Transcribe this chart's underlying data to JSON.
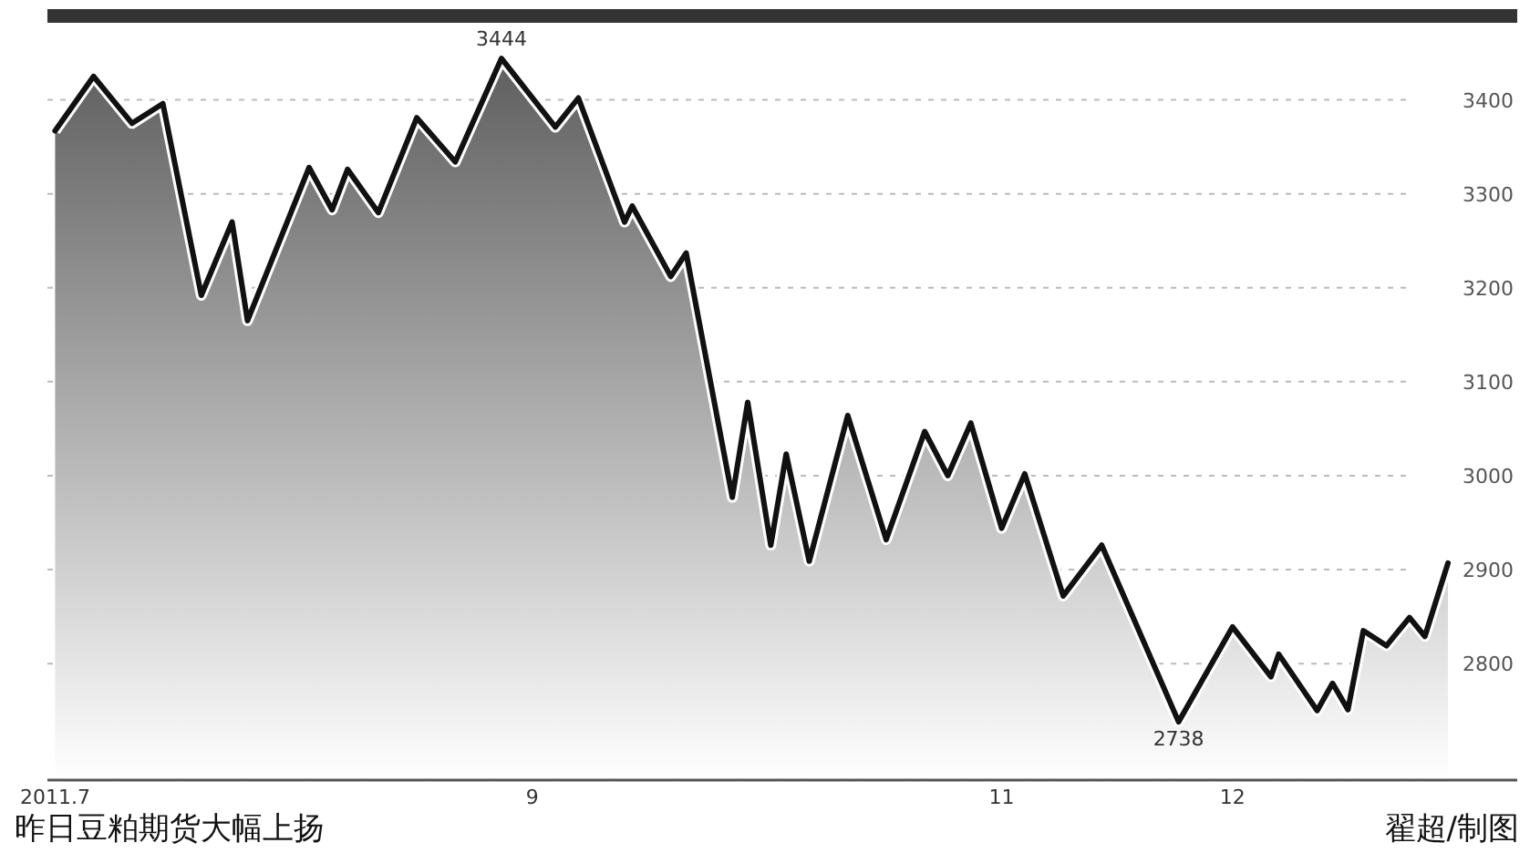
{
  "chart_data": {
    "type": "area",
    "title": "昨日豆粕期货大幅上扬",
    "annotations": [
      {
        "text": "3444",
        "x": "2011-08-28",
        "y": 3444
      },
      {
        "text": "2738",
        "x": "2011-11-24",
        "y": 2738
      },
      "翟超/制图"
    ],
    "series": [
      {
        "color": "#111111",
        "x": [
          "2011-07-01",
          "2011-07-06",
          "2011-07-11",
          "2011-07-15",
          "2011-07-20",
          "2011-07-24",
          "2011-07-26",
          "2011-08-03",
          "2011-08-06",
          "2011-08-08",
          "2011-08-12",
          "2011-08-17",
          "2011-08-22",
          "2011-08-28",
          "2011-09-04",
          "2011-09-07",
          "2011-09-13",
          "2011-09-14",
          "2011-09-19",
          "2011-09-21",
          "2011-09-27",
          "2011-09-29",
          "2011-10-02",
          "2011-10-04",
          "2011-10-07",
          "2011-10-12",
          "2011-10-17",
          "2011-10-22",
          "2011-10-25",
          "2011-10-28",
          "2011-11-01",
          "2011-11-04",
          "2011-11-09",
          "2011-11-14",
          "2011-11-24",
          "2011-12-01",
          "2011-12-06",
          "2011-12-07",
          "2011-12-12",
          "2011-12-14",
          "2011-12-16",
          "2011-12-18",
          "2011-12-21",
          "2011-12-24",
          "2011-12-26",
          "2011-12-29"
        ],
        "values": [
          3367,
          3425,
          3375,
          3396,
          3192,
          3270,
          3165,
          3328,
          3283,
          3326,
          3280,
          3381,
          3334,
          3444,
          3371,
          3402,
          3270,
          3287,
          3212,
          3237,
          2977,
          3078,
          2926,
          3023,
          2909,
          3064,
          2932,
          3047,
          3000,
          3056,
          2944,
          3002,
          2872,
          2926,
          2738,
          2839,
          2786,
          2810,
          2750,
          2779,
          2751,
          2835,
          2819,
          2849,
          2829,
          2907
        ]
      }
    ],
    "xlim": [
      "2011-06-30",
      "2012-01-07"
    ],
    "xticks": [
      {
        "value": "2011-07-01",
        "label": "2011.7"
      },
      {
        "value": "2011-09-01",
        "label": "9"
      },
      {
        "value": "2011-11-01",
        "label": "11"
      },
      {
        "value": "2011-12-01",
        "label": "12"
      }
    ],
    "ylim": [
      2676,
      3483
    ],
    "yticks": [
      2800,
      2900,
      3000,
      3100,
      3200,
      3300,
      3400
    ],
    "grid": "y",
    "line_style": "solid",
    "marker": "none"
  }
}
